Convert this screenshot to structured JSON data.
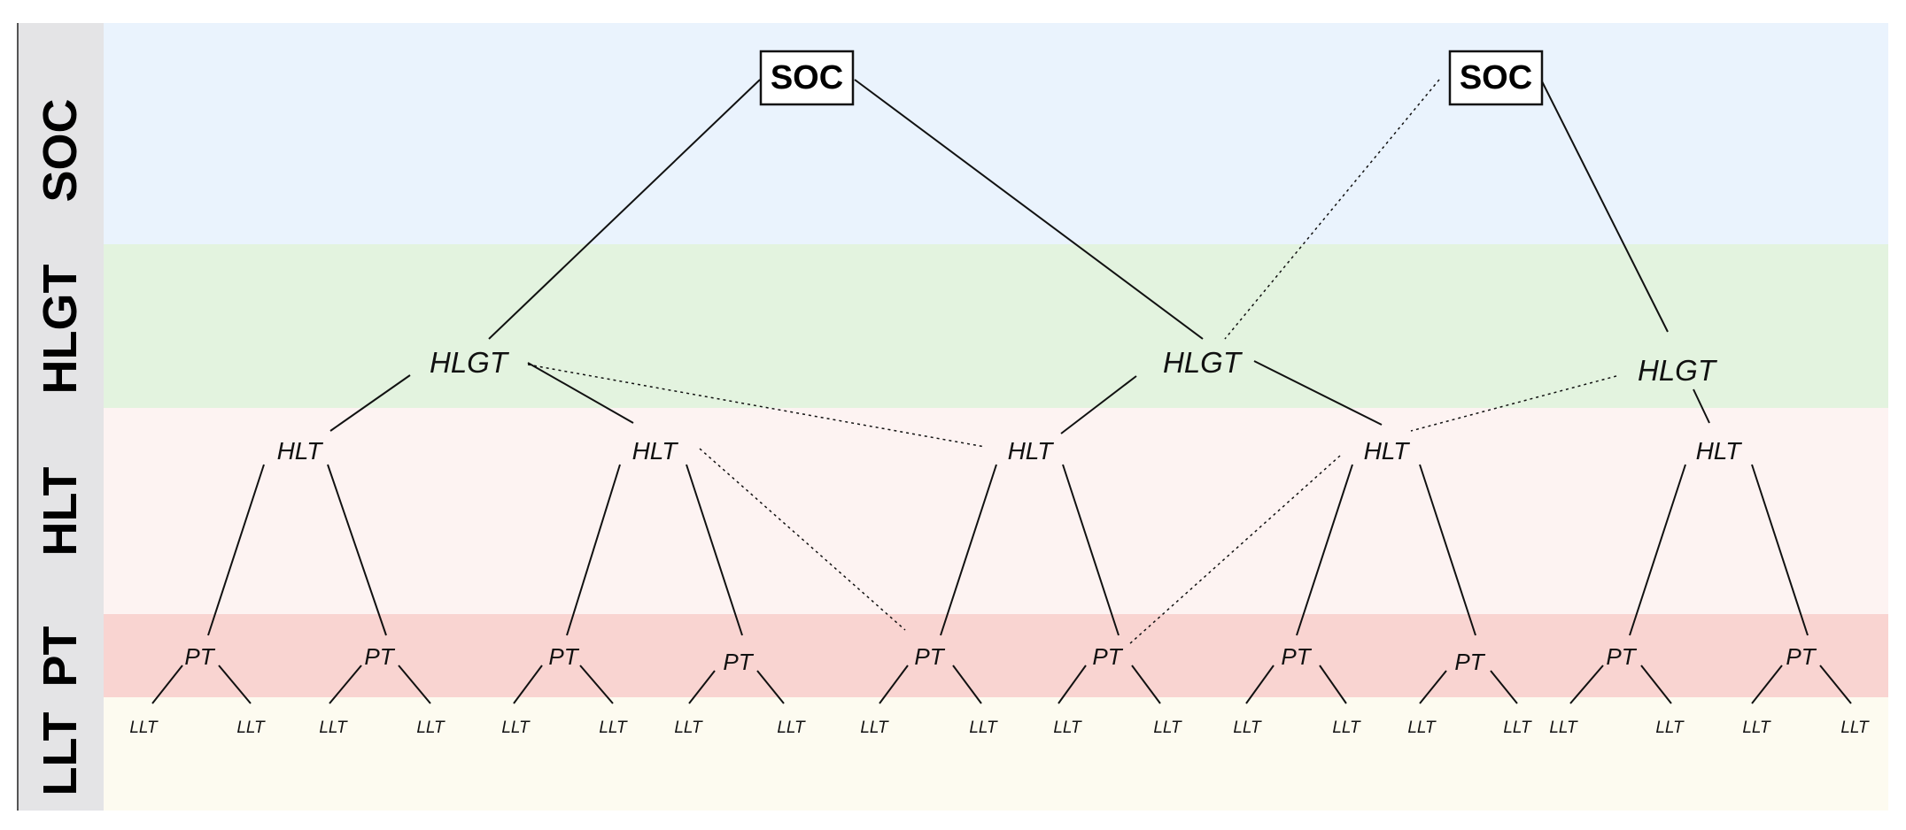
{
  "colors": {
    "band_soc": "#eaf3fd",
    "band_hlgt": "#e3f3df",
    "band_hlt": "#fdf3f2",
    "band_pt": "#f9d4d1",
    "band_llt": "#fdfbf0",
    "sidebar": "#e4e4e6",
    "line": "#111111"
  },
  "bands": [
    {
      "id": "soc",
      "label": "SOC"
    },
    {
      "id": "hlgt",
      "label": "HLGT"
    },
    {
      "id": "hlt",
      "label": "HLT"
    },
    {
      "id": "pt",
      "label": "PT"
    },
    {
      "id": "llt",
      "label": "LLT"
    }
  ],
  "nodes": {
    "soc": [
      "SOC",
      "SOC"
    ],
    "hlgt": [
      "HLGT",
      "HLGT",
      "HLGT"
    ],
    "hlt": [
      "HLT",
      "HLT",
      "HLT",
      "HLT",
      "HLT"
    ],
    "pt": [
      "PT",
      "PT",
      "PT",
      "PT",
      "PT",
      "PT",
      "PT",
      "PT",
      "PT",
      "PT"
    ],
    "llt": [
      "LLT",
      "LLT",
      "LLT",
      "LLT",
      "LLT",
      "LLT",
      "LLT",
      "LLT",
      "LLT",
      "LLT",
      "LLT",
      "LLT",
      "LLT",
      "LLT",
      "LLT",
      "LLT",
      "LLT",
      "LLT",
      "LLT",
      "LLT"
    ]
  }
}
